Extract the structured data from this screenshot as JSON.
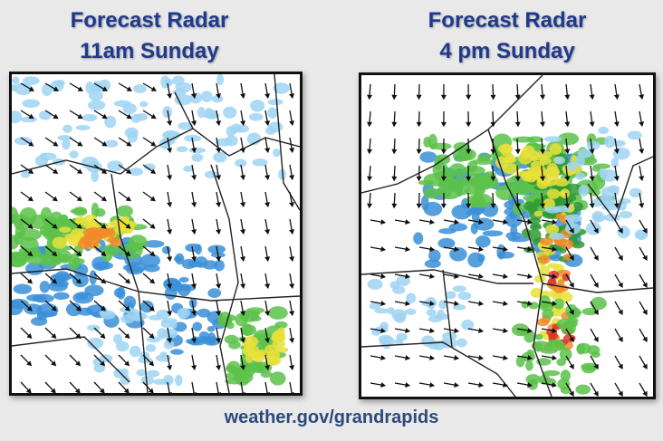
{
  "panels": [
    {
      "title_line1": "Forecast Radar",
      "title_line2": "11am Sunday"
    },
    {
      "title_line1": "Forecast Radar",
      "title_line2": "4 pm Sunday"
    }
  ],
  "footer": {
    "url": "weather.gov/grandrapids"
  },
  "colors": {
    "title": "#1f3a8c",
    "footer": "#2c4a7a",
    "radar_light_blue": "#9fd3f2",
    "radar_blue": "#3a8fd8",
    "radar_green": "#5cc24a",
    "radar_dark_green": "#2f9a35",
    "radar_yellow": "#e8e03a",
    "radar_orange": "#f08a2a",
    "radar_red": "#d8352a"
  },
  "icons": {
    "wind_vector": "arrow-icon"
  }
}
